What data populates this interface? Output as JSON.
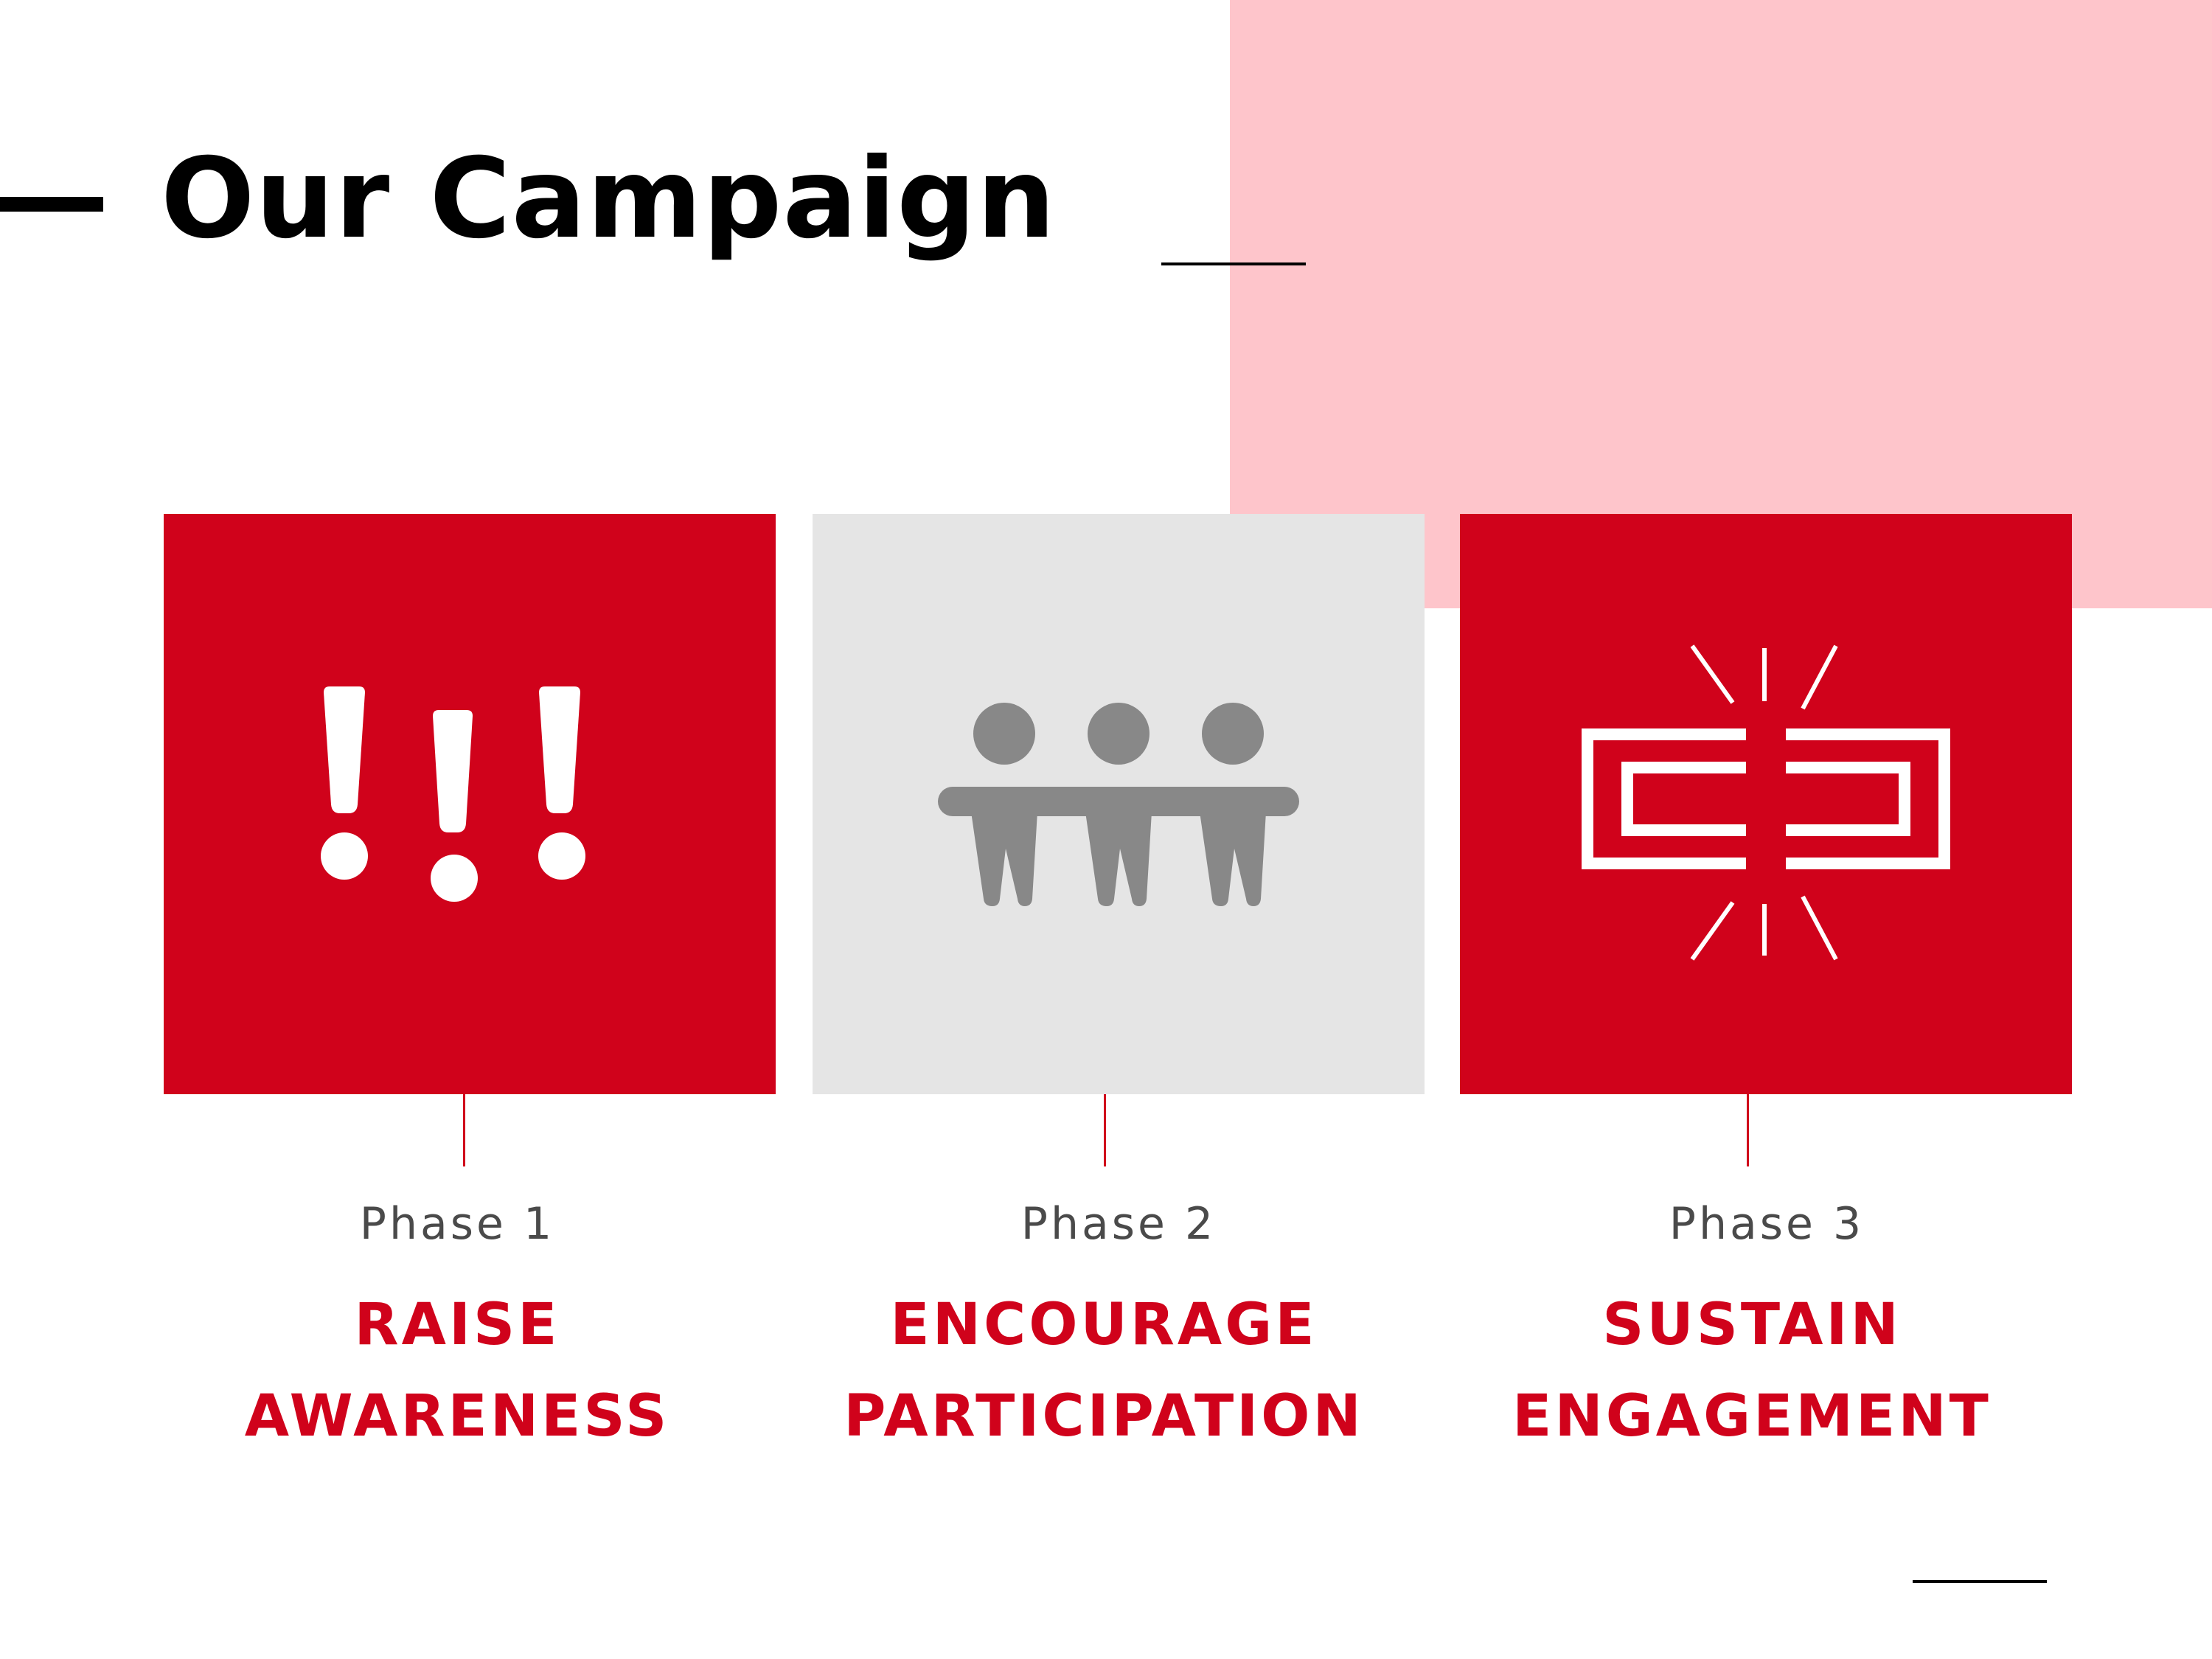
{
  "slide": {
    "title": "Our Campaign",
    "colors": {
      "accent": "#d0021b",
      "pink": "#fec5cb",
      "gray_card": "#e5e5e5",
      "gray_icon": "#888888",
      "text_gray": "#4a4a4a"
    }
  },
  "phases": [
    {
      "label": "Phase 1",
      "heading_line1": "RAISE",
      "heading_line2": "AWARENESS",
      "icon": "exclamation-marks-icon",
      "card_color": "#d0021b"
    },
    {
      "label": "Phase 2",
      "heading_line1": "ENCOURAGE",
      "heading_line2": "PARTICIPATION",
      "icon": "people-holding-bar-icon",
      "card_color": "#e5e5e5"
    },
    {
      "label": "Phase 3",
      "heading_line1": "SUSTAIN",
      "heading_line2": "ENGAGEMENT",
      "icon": "connecting-links-icon",
      "card_color": "#d0021b"
    }
  ]
}
